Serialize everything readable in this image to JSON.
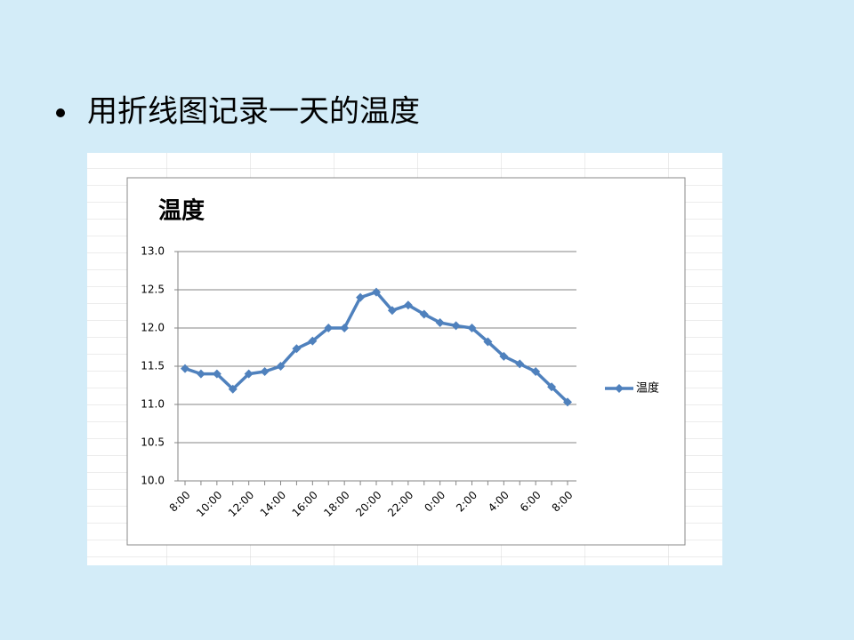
{
  "slide": {
    "bullet": "用折线图记录一天的温度"
  },
  "chart_data": {
    "type": "line",
    "title": "温度",
    "categories": [
      "8:00",
      null,
      "10:00",
      null,
      "12:00",
      null,
      "14:00",
      null,
      "16:00",
      null,
      "18:00",
      null,
      "20:00",
      null,
      "22:00",
      null,
      "0:00",
      null,
      "2:00",
      null,
      "4:00",
      null,
      "6:00",
      null,
      "8:00"
    ],
    "series": [
      {
        "name": "温度",
        "color": "#4f81bd",
        "values": [
          11.47,
          11.4,
          11.4,
          11.2,
          11.4,
          11.43,
          11.5,
          11.73,
          11.83,
          12.0,
          12.0,
          12.4,
          12.47,
          12.23,
          12.3,
          12.18,
          12.07,
          12.03,
          12.0,
          11.82,
          11.63,
          11.53,
          11.43,
          11.23,
          11.03
        ]
      }
    ],
    "ylim": [
      10,
      13
    ],
    "yticks": [
      {
        "value": 10,
        "label": "10.0"
      },
      {
        "value": 10.5,
        "label": "10.5"
      },
      {
        "value": 11,
        "label": "11.0"
      },
      {
        "value": 11.5,
        "label": "11.5"
      },
      {
        "value": 12,
        "label": "12.0"
      },
      {
        "value": 12.5,
        "label": "12.5"
      },
      {
        "value": 13,
        "label": "13.0"
      }
    ],
    "grid": true,
    "legend": "right"
  }
}
